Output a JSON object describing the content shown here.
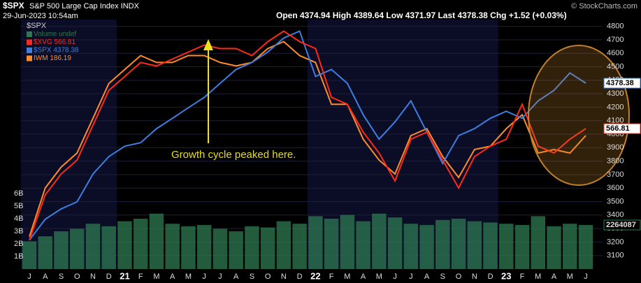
{
  "chart_data": {
    "type": "line",
    "symbol": "$SPX",
    "title": "S&P 500 Large Cap Index INDX",
    "date": "29-Jun-2023 10:54am",
    "quote": "Open 4374.94 High 4389.64 Low 4371.97 Last 4378.38 Chg +1.52 (+0.03%)",
    "credit": "© StockCharts.com",
    "legend_title": "$SPX",
    "annotation": "Growth cycle peaked here.",
    "categories": [
      "J",
      "A",
      "S",
      "O",
      "N",
      "D",
      "21",
      "F",
      "M",
      "A",
      "M",
      "J",
      "J",
      "A",
      "S",
      "O",
      "N",
      "D",
      "22",
      "F",
      "M",
      "A",
      "M",
      "J",
      "J",
      "A",
      "S",
      "O",
      "N",
      "D",
      "23",
      "F",
      "M",
      "A",
      "M",
      "J"
    ],
    "series": [
      {
        "name": "$XVG 566.81",
        "color": "#ff2a1a",
        "values": [
          3214,
          3550,
          3705,
          3808,
          4066,
          4325,
          4428,
          4532,
          4506,
          4557,
          4609,
          4661,
          4635,
          4635,
          4583,
          4687,
          4764,
          4687,
          4635,
          4273,
          4222,
          4015,
          3860,
          3653,
          3963,
          4015,
          3808,
          3601,
          3834,
          3911,
          3963,
          4222,
          3911,
          3860,
          3963,
          4041
        ]
      },
      {
        "name": "$SPX 4378.38",
        "color": "#3d7fe0",
        "values": [
          3214,
          3369,
          3446,
          3498,
          3705,
          3834,
          3911,
          3937,
          4041,
          4118,
          4196,
          4273,
          4377,
          4480,
          4532,
          4609,
          4713,
          4764,
          4428,
          4480,
          4377,
          4144,
          3963,
          4092,
          4247,
          4015,
          3782,
          3989,
          4041,
          4118,
          4170,
          4118,
          4247,
          4325,
          4454,
          4378.38
        ]
      },
      {
        "name": "IWM 186.19",
        "color": "#ff8c2a",
        "values": [
          3240,
          3601,
          3756,
          3860,
          4118,
          4376,
          4480,
          4583,
          4532,
          4532,
          4583,
          4583,
          4532,
          4506,
          4532,
          4635,
          4687,
          4583,
          4532,
          4222,
          4222,
          3963,
          3808,
          3705,
          3989,
          4041,
          3834,
          3679,
          3886,
          3911,
          4041,
          4144,
          3860,
          3886,
          3860,
          3989
        ]
      }
    ],
    "volume": {
      "name": "Volume undef",
      "color": "#2f7a52",
      "values": [
        2.2,
        2.6,
        3.0,
        3.2,
        3.6,
        3.4,
        3.8,
        4.0,
        4.4,
        3.6,
        3.4,
        3.5,
        3.2,
        3.0,
        3.4,
        3.3,
        3.8,
        3.6,
        4.2,
        4.0,
        4.3,
        3.8,
        4.4,
        4.1,
        3.6,
        3.5,
        3.9,
        4.0,
        3.8,
        3.7,
        3.6,
        3.5,
        4.2,
        3.4,
        3.6,
        3.5
      ]
    },
    "ylim": [
      3000,
      4850
    ],
    "yticks": [
      3100,
      3200,
      3300,
      3400,
      3500,
      3600,
      3700,
      3800,
      3900,
      4000,
      4100,
      4200,
      4300,
      4400,
      4500,
      4600,
      4700,
      4800
    ],
    "y2lim": [
      0,
      19.83
    ],
    "y2ticks": [
      {
        "value": 1,
        "label": "1B"
      },
      {
        "value": 2,
        "label": "2B"
      },
      {
        "value": 3,
        "label": "3B"
      },
      {
        "value": 4,
        "label": "4B"
      },
      {
        "value": 5,
        "label": "5B"
      },
      {
        "value": 6,
        "label": "6B"
      }
    ],
    "tags": [
      "4378.38",
      "566.81",
      "2264087"
    ],
    "grid": true
  }
}
